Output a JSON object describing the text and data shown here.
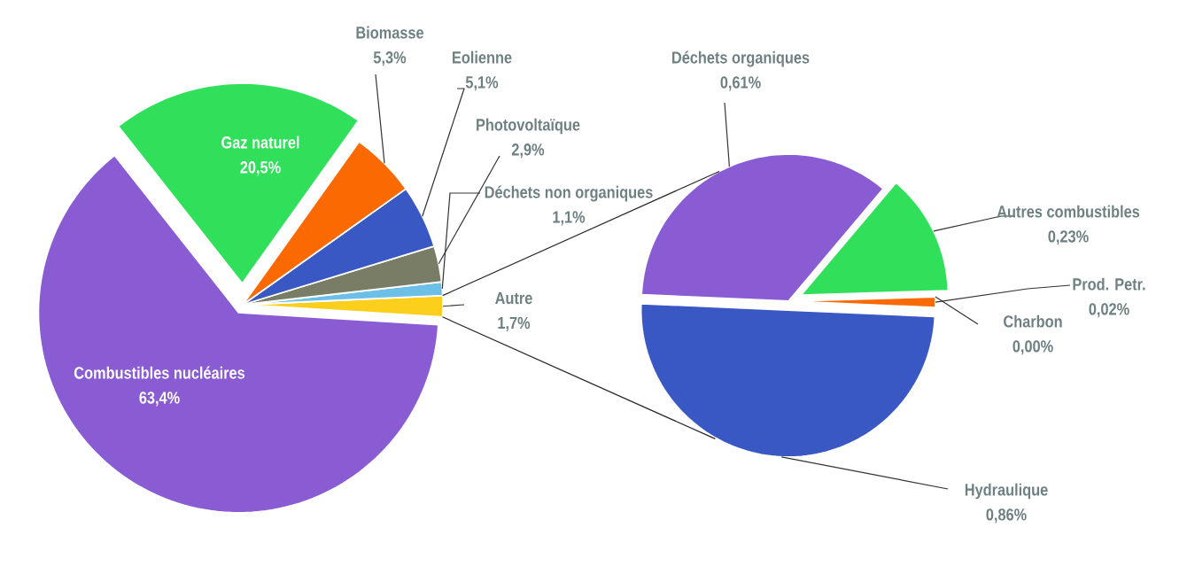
{
  "chart_data": [
    {
      "type": "pie",
      "categories": [
        "Autre",
        "Déchets non organiques",
        "Photovoltaïque",
        "Eolienne",
        "Biomasse",
        "Gaz naturel",
        "Combustibles nucléaires"
      ],
      "values": [
        1.7,
        1.1,
        2.9,
        5.1,
        5.3,
        20.5,
        63.4
      ],
      "value_labels": [
        "1,7%",
        "1,1%",
        "2,9%",
        "5,1%",
        "5,3%",
        "20,5%",
        "63,4%"
      ],
      "colors": [
        "#fccf1c",
        "#6cc0e8",
        "#7a7d66",
        "#3a58c4",
        "#fb6a02",
        "#30e05a",
        "#8a5cd4"
      ]
    },
    {
      "type": "pie",
      "categories": [
        "Prod. Petr.",
        "Charbon",
        "Autres combustibles",
        "Déchets organiques",
        "Hydraulique"
      ],
      "values": [
        0.02,
        0.0,
        0.23,
        0.61,
        0.86
      ],
      "value_labels": [
        "0,02%",
        "0,00%",
        "0,23%",
        "0,61%",
        "0,86%"
      ],
      "colors": [
        "#fb6a02",
        "#3a58c4",
        "#30e05a",
        "#8a5cd4",
        "#3a58c4"
      ]
    }
  ]
}
